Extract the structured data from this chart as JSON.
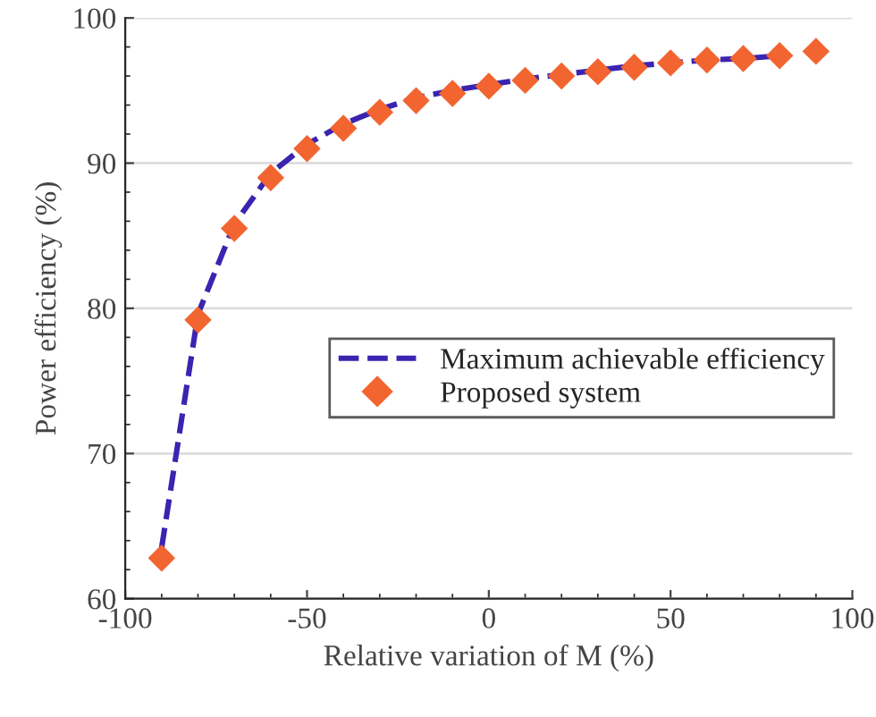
{
  "chart_data": {
    "type": "line",
    "xlabel": "Relative variation of M (%)",
    "ylabel": "Power efficiency (%)",
    "x": [
      -90,
      -80,
      -70,
      -60,
      -50,
      -40,
      -30,
      -20,
      -10,
      0,
      10,
      20,
      30,
      40,
      50,
      60,
      70,
      80,
      90
    ],
    "series": [
      {
        "name": "Maximum achievable efficiency",
        "color": "#3a24b0",
        "line_style": "dashed",
        "marker": "none",
        "values": [
          63.5,
          79.6,
          85.8,
          89.3,
          91.3,
          92.7,
          93.7,
          94.5,
          95.0,
          95.4,
          95.8,
          96.1,
          96.4,
          96.7,
          96.9,
          97.1,
          97.2,
          97.4,
          null
        ]
      },
      {
        "name": "Proposed system",
        "type": "scatter",
        "color": "#f26430",
        "marker": "diamond",
        "values": [
          62.8,
          79.2,
          85.5,
          89.0,
          91.0,
          92.4,
          93.5,
          94.3,
          94.8,
          95.3,
          95.7,
          96.0,
          96.3,
          96.6,
          96.9,
          97.1,
          97.2,
          97.4,
          97.7
        ]
      }
    ],
    "xlim": [
      -100,
      100
    ],
    "xticks": [
      -100,
      -50,
      0,
      50,
      100
    ],
    "ylim": [
      60,
      100
    ],
    "yticks": [
      60,
      70,
      80,
      90,
      100
    ],
    "grid": "y",
    "legend": "right"
  }
}
